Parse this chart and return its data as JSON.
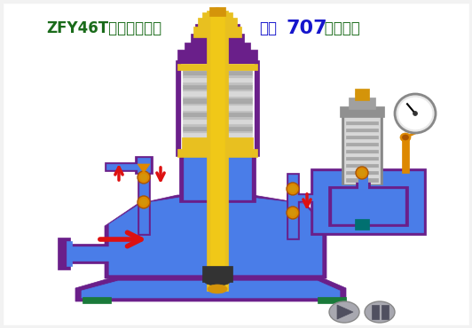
{
  "bg_color": "#f2f2f2",
  "title_left": "ZFY46T组合式减压阀",
  "title_right1": "化工",
  "title_right2": "707",
  "title_right3": " 剪辑制作",
  "title_left_color": "#1a6b1a",
  "title_right1_color": "#1515cc",
  "title_right2_color": "#1515cc",
  "title_right3_color": "#1a6b1a",
  "body_blue": "#4a7de8",
  "body_purple": "#6a1f8a",
  "body_yellow": "#e8c020",
  "body_gold": "#d4940a",
  "spring_light": "#d8d8d8",
  "spring_dark": "#a8a8a8",
  "arrow_red": "#dd1111",
  "arrow_orange": "#dd8800",
  "plate_green": "#1a7a3a",
  "button_gray": "#a8a8b0",
  "white": "#ffffff",
  "dark": "#333333",
  "pipe_blue": "#3060d0"
}
